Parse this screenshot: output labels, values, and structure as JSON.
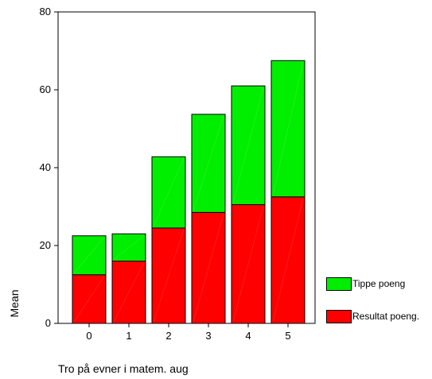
{
  "chart_data": {
    "type": "bar",
    "stacked": true,
    "categories": [
      "0",
      "1",
      "2",
      "3",
      "4",
      "5"
    ],
    "series": [
      {
        "name": "Resultat poeng.",
        "values": [
          12.5,
          16.0,
          24.5,
          28.5,
          30.5,
          32.5
        ],
        "color": "#ff0000"
      },
      {
        "name": "Tippe poeng",
        "values": [
          10.0,
          7.0,
          18.3,
          25.2,
          30.5,
          35.0
        ],
        "color": "#00ee00"
      }
    ],
    "totals": [
      22.5,
      23.0,
      42.8,
      53.7,
      61.0,
      67.5
    ],
    "title": "",
    "xlabel": "Tro på evner i matem. aug",
    "ylabel": "Mean",
    "ylim": [
      0,
      80
    ],
    "yticks": [
      0,
      20,
      40,
      60,
      80
    ],
    "legend_position": "right"
  }
}
